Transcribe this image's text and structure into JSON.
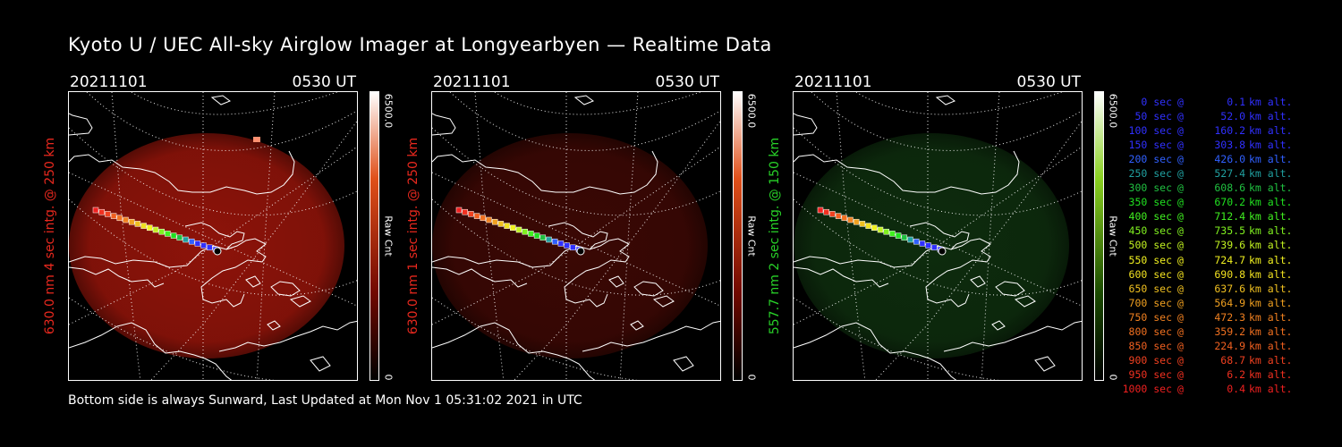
{
  "title": "Kyoto U / UEC All-sky Airglow Imager at Longyearbyen — Realtime Data",
  "footer": "Bottom side is always Sunward, Last Updated at Mon Nov  1 05:31:02 2021 in UTC",
  "panels": [
    {
      "date": "20211101",
      "time": "0530 UT",
      "label": "630.0 nm 4 sec intg. @ 250 km",
      "label_color": "#e8281e",
      "glow_color": "#b0180c",
      "glow_intensity": 0.8,
      "cb_top": "#ffffff",
      "cb_mid": "#e0501a",
      "cb_low": "#700800",
      "colorbar_max": "6500.0",
      "colorbar_min": "0",
      "colorbar_unit": "Raw Cnt"
    },
    {
      "date": "20211101",
      "time": "0530 UT",
      "label": "630.0 nm 1 sec intg. @ 250 km",
      "label_color": "#e8281e",
      "glow_color": "#5a0c06",
      "glow_intensity": 0.65,
      "cb_top": "#ffffff",
      "cb_mid": "#e0501a",
      "cb_low": "#700800",
      "colorbar_max": "6500.0",
      "colorbar_min": "0",
      "colorbar_unit": "Raw Cnt"
    },
    {
      "date": "20211101",
      "time": "0530 UT",
      "label": "557.7 nm 2 sec intg. @ 150 km",
      "label_color": "#28d228",
      "glow_color": "#123a12",
      "glow_intensity": 0.75,
      "cb_top": "#ffffff",
      "cb_mid": "#8ad020",
      "cb_low": "#1a4a00",
      "colorbar_max": "6500.0",
      "colorbar_min": "0",
      "colorbar_unit": "Raw Cnt"
    }
  ],
  "legend_at": "@",
  "legend_alt": "km alt.",
  "legend": [
    {
      "sec": "0 sec",
      "km": "0.1",
      "color": "#3030ff"
    },
    {
      "sec": "50 sec",
      "km": "52.0",
      "color": "#3030ff"
    },
    {
      "sec": "100 sec",
      "km": "160.2",
      "color": "#3030ff"
    },
    {
      "sec": "150 sec",
      "km": "303.8",
      "color": "#3030ff"
    },
    {
      "sec": "200 sec",
      "km": "426.0",
      "color": "#3060ff"
    },
    {
      "sec": "250 sec",
      "km": "527.4",
      "color": "#20a0a0"
    },
    {
      "sec": "300 sec",
      "km": "608.6",
      "color": "#20c040"
    },
    {
      "sec": "350 sec",
      "km": "670.2",
      "color": "#20e020"
    },
    {
      "sec": "400 sec",
      "km": "712.4",
      "color": "#40f020"
    },
    {
      "sec": "450 sec",
      "km": "735.5",
      "color": "#80f020"
    },
    {
      "sec": "500 sec",
      "km": "739.6",
      "color": "#c0f020"
    },
    {
      "sec": "550 sec",
      "km": "724.7",
      "color": "#f0f020"
    },
    {
      "sec": "600 sec",
      "km": "690.8",
      "color": "#f0e020"
    },
    {
      "sec": "650 sec",
      "km": "637.6",
      "color": "#f0c020"
    },
    {
      "sec": "700 sec",
      "km": "564.9",
      "color": "#f0a020"
    },
    {
      "sec": "750 sec",
      "km": "472.3",
      "color": "#f08020"
    },
    {
      "sec": "800 sec",
      "km": "359.2",
      "color": "#f07020"
    },
    {
      "sec": "850 sec",
      "km": "224.9",
      "color": "#f06020"
    },
    {
      "sec": "900 sec",
      "km": "68.7",
      "color": "#f04020"
    },
    {
      "sec": "950 sec",
      "km": "6.2",
      "color": "#f03020"
    },
    {
      "sec": "1000 sec",
      "km": "0.4",
      "color": "#f02020"
    }
  ]
}
